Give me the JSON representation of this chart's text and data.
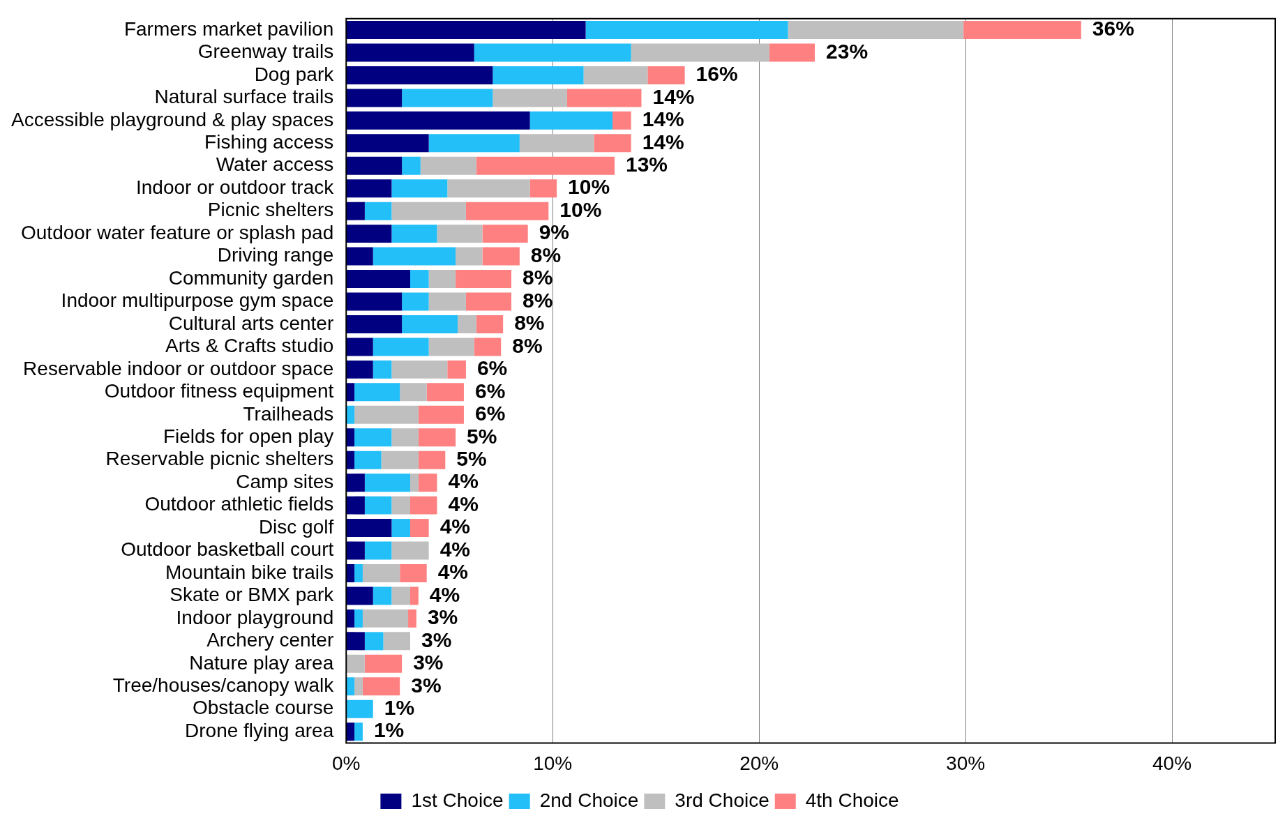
{
  "chart_data": {
    "type": "bar",
    "orientation": "horizontal",
    "stacked": true,
    "categories": [
      "Farmers market pavilion",
      "Greenway trails",
      "Dog park",
      "Natural surface trails",
      "Accessible playground & play spaces",
      "Fishing access",
      "Water access",
      "Indoor or outdoor track",
      "Picnic shelters",
      "Outdoor water feature or splash pad",
      "Driving range",
      "Community garden",
      "Indoor multipurpose gym space",
      "Cultural arts center",
      "Arts & Crafts studio",
      "Reservable indoor or outdoor space",
      "Outdoor fitness equipment",
      "Trailheads",
      "Fields for open play",
      "Reservable picnic shelters",
      "Camp sites",
      "Outdoor athletic fields",
      "Disc golf",
      "Outdoor basketball court",
      "Mountain bike trails",
      "Skate or BMX park",
      "Indoor playground",
      "Archery center",
      "Nature play area",
      "Tree/houses/canopy walk",
      "Obstacle course",
      "Drone flying area"
    ],
    "series": [
      {
        "name": "1st Choice",
        "color": "#000080",
        "values": [
          11.6,
          6.2,
          7.1,
          2.7,
          8.9,
          4.0,
          2.7,
          2.2,
          0.9,
          2.2,
          1.3,
          3.1,
          2.7,
          2.7,
          1.3,
          1.3,
          0.4,
          0,
          0.4,
          0.4,
          0.9,
          0.9,
          2.2,
          0.9,
          0.4,
          1.3,
          0.4,
          0.9,
          0,
          0,
          0,
          0.4
        ]
      },
      {
        "name": "2nd Choice",
        "color": "#22bff8",
        "values": [
          9.8,
          7.6,
          4.4,
          4.4,
          4.0,
          4.4,
          0.9,
          2.7,
          1.3,
          2.2,
          4.0,
          0.9,
          1.3,
          2.7,
          2.7,
          0.9,
          2.2,
          0.4,
          1.8,
          1.3,
          2.2,
          1.3,
          0.9,
          1.3,
          0.4,
          0.9,
          0.4,
          0.9,
          0,
          0.4,
          1.3,
          0.4
        ]
      },
      {
        "name": "3rd Choice",
        "color": "#bfbfbf",
        "values": [
          8.5,
          6.7,
          3.1,
          3.6,
          0,
          3.6,
          2.7,
          4.0,
          3.6,
          2.2,
          1.3,
          1.3,
          1.8,
          0.9,
          2.2,
          2.7,
          1.3,
          3.1,
          1.3,
          1.8,
          0.4,
          0.9,
          0,
          1.8,
          1.8,
          0.9,
          2.2,
          1.3,
          0.9,
          0.4,
          0,
          0
        ]
      },
      {
        "name": "4th Choice",
        "color": "#ff8080",
        "values": [
          5.7,
          2.2,
          1.8,
          3.6,
          0.9,
          1.8,
          6.7,
          1.3,
          4.0,
          2.2,
          1.8,
          2.7,
          2.2,
          1.3,
          1.3,
          0.9,
          1.8,
          2.2,
          1.8,
          1.3,
          0.9,
          1.3,
          0.9,
          0,
          1.3,
          0.4,
          0.4,
          0,
          1.8,
          1.8,
          0,
          0
        ]
      }
    ],
    "totals": [
      "36%",
      "23%",
      "16%",
      "14%",
      "14%",
      "14%",
      "13%",
      "10%",
      "10%",
      "9%",
      "8%",
      "8%",
      "8%",
      "8%",
      "8%",
      "6%",
      "6%",
      "6%",
      "5%",
      "5%",
      "4%",
      "4%",
      "4%",
      "4%",
      "4%",
      "4%",
      "3%",
      "3%",
      "3%",
      "3%",
      "1%",
      "1%"
    ],
    "xlim": [
      0,
      45
    ],
    "xticks": [
      {
        "value": 0,
        "label": "0%"
      },
      {
        "value": 10,
        "label": "10%"
      },
      {
        "value": 20,
        "label": "20%"
      },
      {
        "value": 30,
        "label": "30%"
      },
      {
        "value": 40,
        "label": "40%"
      }
    ],
    "grid": "x",
    "legend": "bottom"
  }
}
